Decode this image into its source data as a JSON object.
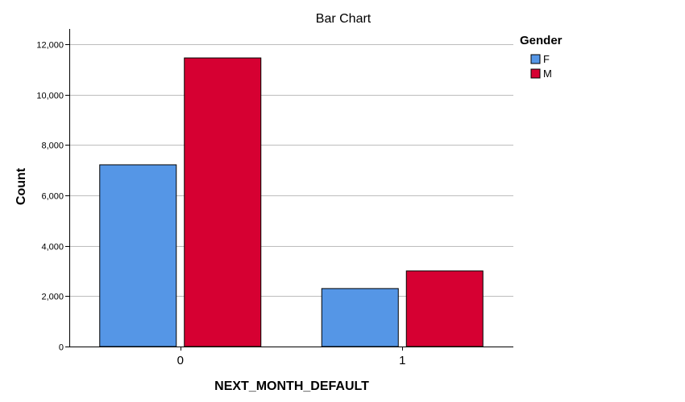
{
  "chart_data": {
    "type": "bar",
    "title": "Bar Chart",
    "xlabel": "NEXT_MONTH_DEFAULT",
    "ylabel": "Count",
    "categories": [
      "0",
      "1"
    ],
    "series": [
      {
        "name": "F",
        "values": [
          7210,
          2300
        ],
        "color": "#5596e6"
      },
      {
        "name": "M",
        "values": [
          11450,
          3000
        ],
        "color": "#d60032"
      }
    ],
    "ylim": [
      0,
      12600
    ],
    "yticks": [
      0,
      2000,
      4000,
      6000,
      8000,
      10000,
      12000
    ],
    "ytick_labels": [
      "0",
      "2,000",
      "4,000",
      "6,000",
      "8,000",
      "10,000",
      "12,000"
    ],
    "grid": true,
    "legend": {
      "title": "Gender",
      "placement": "top-right"
    }
  }
}
